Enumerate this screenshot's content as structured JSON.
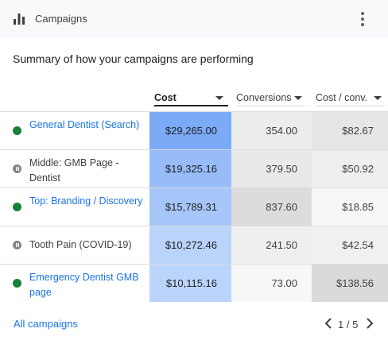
{
  "header": {
    "title": "Campaigns",
    "icon": "bar-chart-icon",
    "menu_icon": "more-vert-icon"
  },
  "summary": "Summary of how your campaigns are performing",
  "columns": {
    "cost": "Cost",
    "conversions": "Conversions",
    "cost_per_conv": "Cost / conv."
  },
  "rows": [
    {
      "name": "General Dentist (Search)",
      "status": "enabled",
      "cost": "$29,265.00",
      "conversions": "354.00",
      "cost_per_conv": "$82.67"
    },
    {
      "name": "Middle: GMB Page - Dentist",
      "status": "paused",
      "cost": "$19,325.16",
      "conversions": "379.50",
      "cost_per_conv": "$50.92"
    },
    {
      "name": "Top: Branding / Discovery",
      "status": "enabled",
      "cost": "$15,789.31",
      "conversions": "837.60",
      "cost_per_conv": "$18.85"
    },
    {
      "name": "Tooth Pain (COVID-19)",
      "status": "paused",
      "cost": "$10,272.46",
      "conversions": "241.50",
      "cost_per_conv": "$42.54"
    },
    {
      "name": "Emergency Dentist GMB page",
      "status": "enabled",
      "cost": "$10,115.16",
      "conversions": "73.00",
      "cost_per_conv": "$138.56"
    }
  ],
  "colors": {
    "cost_heat": [
      "#7baaf7",
      "#97bcf8",
      "#a6c6f9",
      "#b9d3fb",
      "#bbd4fb"
    ],
    "conv_heat": [
      "#ececec",
      "#e9e9e9",
      "#dcdcdc",
      "#efefef",
      "#f7f7f7"
    ],
    "cpc_heat": [
      "#e6e6e6",
      "#efefef",
      "#f6f6f6",
      "#f0f0f0",
      "#dadada"
    ],
    "link": "#1a73e8",
    "enabled": "#188038",
    "paused": "#80868b"
  },
  "footer": {
    "all_campaigns": "All campaigns",
    "pager": "1 / 5"
  }
}
